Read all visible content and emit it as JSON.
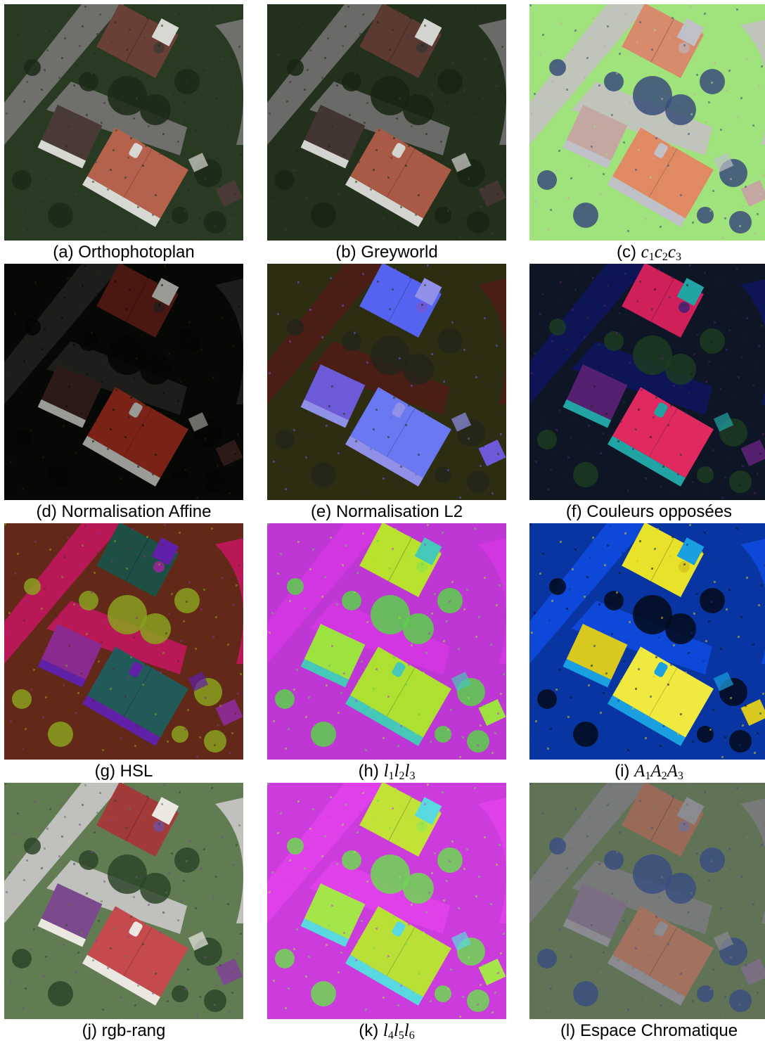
{
  "panels": [
    {
      "id": "a",
      "caption_prefix": "(a)",
      "caption": "Orthophotoplan",
      "math": false,
      "palette": {
        "bg": "#2f3d27",
        "grass": "#27381f",
        "road": "#6f6f6c",
        "roof1": "#6a3f35",
        "roof2": "#b5624d",
        "roof3": "#4a3a35",
        "tree": "#1b2a16",
        "white": "#d8d8d2"
      }
    },
    {
      "id": "b",
      "caption_prefix": "(b)",
      "caption": "Greyworld",
      "math": false,
      "palette": {
        "bg": "#27331f",
        "grass": "#222f1a",
        "road": "#6a6a68",
        "roof1": "#5d3a31",
        "roof2": "#a95a46",
        "roof3": "#433532",
        "tree": "#172512",
        "white": "#d3d3cf"
      }
    },
    {
      "id": "c",
      "caption_prefix": "(c)",
      "caption": "",
      "math": true,
      "math_parts": [
        [
          "c",
          "1"
        ],
        [
          "c",
          "2"
        ],
        [
          "c",
          "3"
        ]
      ],
      "palette": {
        "bg": "#9ee07a",
        "grass": "#a2e27d",
        "road": "#c0c4ba",
        "roof1": "#d88a6c",
        "roof2": "#e08a64",
        "roof3": "#c5a7a1",
        "tree": "#3a4e7a",
        "white": "#bfc0c8"
      }
    },
    {
      "id": "d",
      "caption_prefix": "(d)",
      "caption": "Normalisation Affine",
      "math": false,
      "palette": {
        "bg": "#070807",
        "grass": "#050805",
        "road": "#1d1d1c",
        "roof1": "#4a1810",
        "roof2": "#7a2216",
        "roof3": "#2c1a18",
        "tree": "#040604",
        "white": "#9a9a96"
      }
    },
    {
      "id": "e",
      "caption_prefix": "(e)",
      "caption": "Normalisation L2",
      "math": false,
      "palette": {
        "bg": "#2e2a10",
        "grass": "#2d3212",
        "road": "#4a1e14",
        "roof1": "#5564f0",
        "roof2": "#6a78f2",
        "roof3": "#6c5ad8",
        "tree": "#23251a",
        "white": "#9090e8"
      }
    },
    {
      "id": "f",
      "caption_prefix": "(f)",
      "caption": "Couleurs opposées",
      "math": false,
      "palette": {
        "bg": "#0c1030",
        "grass": "#101a20",
        "road": "#0d1556",
        "roof1": "#d0205a",
        "roof2": "#e02a5f",
        "roof3": "#562070",
        "tree": "#1c3a22",
        "white": "#22a4a4"
      }
    },
    {
      "id": "g",
      "caption_prefix": "(g)",
      "caption": "HSL",
      "math": false,
      "palette": {
        "bg": "#6e2a1a",
        "grass": "#5a2817",
        "road": "#b81856",
        "roof1": "#1e4f45",
        "roof2": "#225a5a",
        "roof3": "#8a2a8e",
        "tree": "#8aa020",
        "white": "#6020a8"
      }
    },
    {
      "id": "h",
      "caption_prefix": "(h)",
      "caption": "",
      "math": true,
      "math_parts": [
        [
          "l",
          "1"
        ],
        [
          "l",
          "2"
        ],
        [
          "l",
          "3"
        ]
      ],
      "palette": {
        "bg": "#c832d8",
        "grass": "#b83ad2",
        "road": "#d236e0",
        "roof1": "#b8e22e",
        "roof2": "#aee031",
        "roof3": "#9ce340",
        "tree": "#5ad04a",
        "white": "#46c8b8"
      }
    },
    {
      "id": "i",
      "caption_prefix": "(i)",
      "caption": "",
      "math": true,
      "math_parts": [
        [
          "A",
          "1"
        ],
        [
          "A",
          "2"
        ],
        [
          "A",
          "3"
        ]
      ],
      "palette": {
        "bg": "#0a3ab8",
        "grass": "#073292",
        "road": "#0d48d8",
        "roof1": "#e8e22a",
        "roof2": "#f0ea40",
        "roof3": "#d8c820",
        "tree": "#040a1a",
        "white": "#1aa0e0"
      }
    },
    {
      "id": "j",
      "caption_prefix": "(j)",
      "caption": "rgb-rang",
      "math": false,
      "palette": {
        "bg": "#66805a",
        "grass": "#5d7a4e",
        "road": "#c0c0bd",
        "roof1": "#a23a3a",
        "roof2": "#c44a4e",
        "roof3": "#7a4a8c",
        "tree": "#2d4529",
        "white": "#ebe8e2"
      }
    },
    {
      "id": "k",
      "caption_prefix": "(k)",
      "caption": "",
      "math": true,
      "math_parts": [
        [
          "l",
          "4"
        ],
        [
          "l",
          "5"
        ],
        [
          "l",
          "6"
        ]
      ],
      "palette": {
        "bg": "#d838e0",
        "grass": "#c43fd8",
        "road": "#e040ea",
        "roof1": "#c2e238",
        "roof2": "#b8e036",
        "roof3": "#a4e64a",
        "tree": "#6cd850",
        "white": "#5ad8e0"
      }
    },
    {
      "id": "l",
      "caption_prefix": "(l)",
      "caption": "Espace Chromatique",
      "math": false,
      "palette": {
        "bg": "#5f7055",
        "grass": "#637558",
        "road": "#777a78",
        "roof1": "#9a6a58",
        "roof2": "#a3725e",
        "roof3": "#7a6e82",
        "tree": "#3b4f80",
        "white": "#8a8a90"
      }
    }
  ]
}
